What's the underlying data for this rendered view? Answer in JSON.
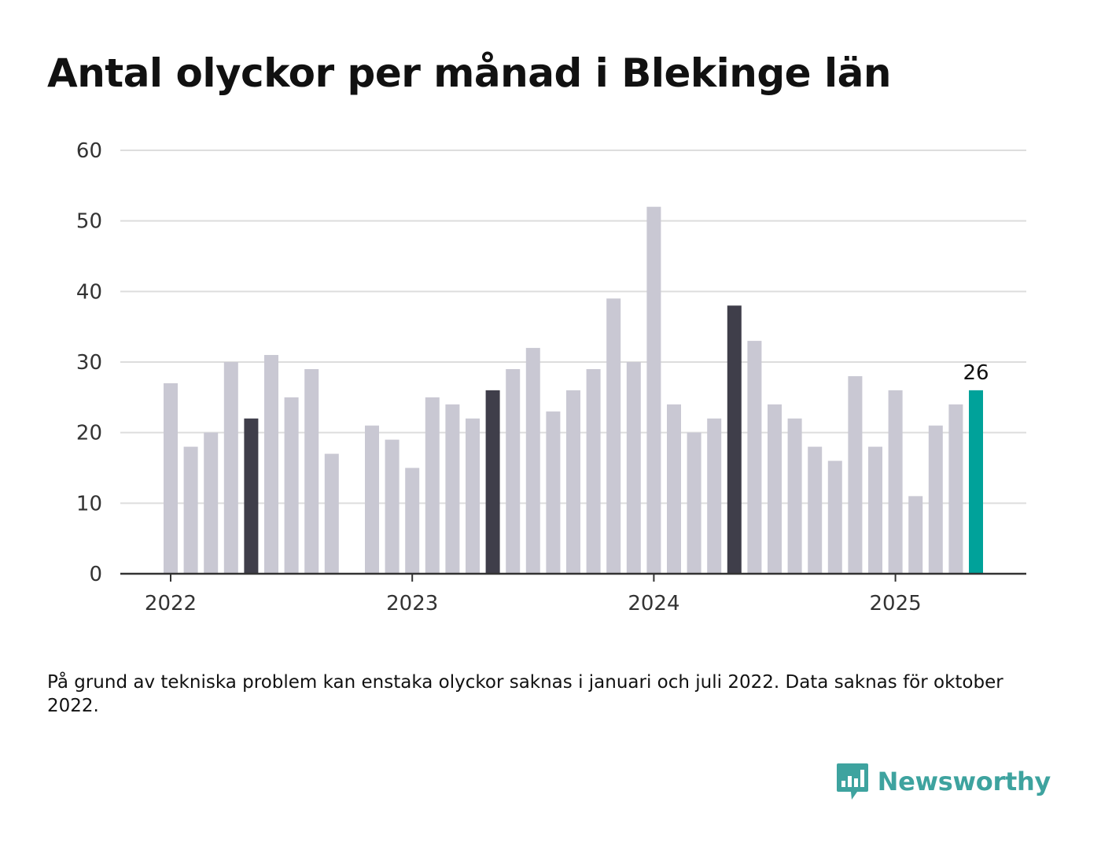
{
  "title": "Antal olyckor per månad i Blekinge län",
  "footnote": "På grund av tekniska problem kan enstaka olyckor saknas i januari och juli 2022. Data saknas för oktober 2022.",
  "brand": {
    "name": "Newsworthy",
    "icon": "bar-chart-speech-bubble-icon",
    "color": "#3ea39f"
  },
  "colors": {
    "bar": "#c9c8d3",
    "highlight_same_month": "#3f3e4a",
    "latest": "#00a29a",
    "grid": "#dddddd",
    "axis": "#333333"
  },
  "chart_data": {
    "type": "bar",
    "title": "Antal olyckor per månad i Blekinge län",
    "xlabel": "",
    "ylabel": "",
    "x_tick_labels": [
      "2022",
      "2023",
      "2024",
      "2025"
    ],
    "y_ticks": [
      0,
      10,
      20,
      30,
      40,
      50,
      60
    ],
    "ylim": [
      0,
      60
    ],
    "grid": true,
    "legend": "none",
    "months": [
      "2022-01",
      "2022-02",
      "2022-03",
      "2022-04",
      "2022-05",
      "2022-06",
      "2022-07",
      "2022-08",
      "2022-09",
      "2022-10",
      "2022-11",
      "2022-12",
      "2023-01",
      "2023-02",
      "2023-03",
      "2023-04",
      "2023-05",
      "2023-06",
      "2023-07",
      "2023-08",
      "2023-09",
      "2023-10",
      "2023-11",
      "2023-12",
      "2024-01",
      "2024-02",
      "2024-03",
      "2024-04",
      "2024-05",
      "2024-06",
      "2024-07",
      "2024-08",
      "2024-09",
      "2024-10",
      "2024-11",
      "2024-12",
      "2025-01",
      "2025-02",
      "2025-03",
      "2025-04",
      "2025-05"
    ],
    "values": [
      27,
      18,
      20,
      30,
      22,
      31,
      25,
      29,
      17,
      null,
      21,
      19,
      15,
      25,
      24,
      22,
      26,
      29,
      32,
      23,
      26,
      29,
      39,
      30,
      52,
      24,
      20,
      22,
      38,
      33,
      24,
      22,
      18,
      16,
      28,
      18,
      26,
      11,
      21,
      24,
      26
    ],
    "highlighted_months": [
      "2022-05",
      "2023-05",
      "2024-05"
    ],
    "latest_month": "2025-05",
    "data_labels": [
      {
        "month": "2025-05",
        "text": "26"
      }
    ]
  }
}
